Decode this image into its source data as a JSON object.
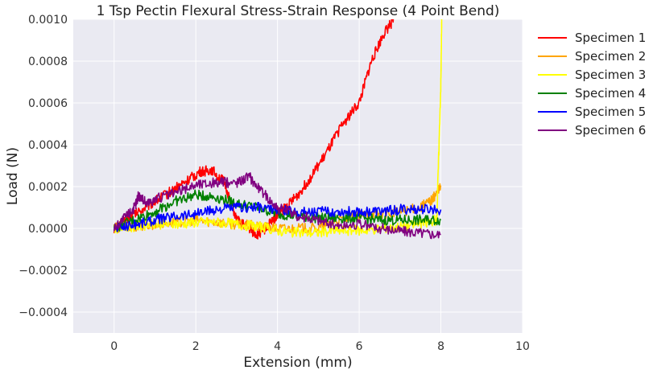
{
  "chart_data": {
    "type": "line",
    "title": "1 Tsp Pectin Flexural Stress-Strain Response (4 Point Bend)",
    "xlabel": "Extension (mm)",
    "ylabel": "Load (N)",
    "xlim": [
      -1,
      10
    ],
    "ylim": [
      -0.0005,
      0.001
    ],
    "xticks": [
      0,
      2,
      4,
      6,
      8,
      10
    ],
    "xtick_labels": [
      "0",
      "2",
      "4",
      "6",
      "8",
      "10"
    ],
    "yticks": [
      -0.0004,
      -0.0002,
      0.0,
      0.0002,
      0.0004,
      0.0006,
      0.0008,
      0.001
    ],
    "ytick_labels": [
      "−0.0004",
      "−0.0002",
      "0.0000",
      "0.0002",
      "0.0004",
      "0.0006",
      "0.0008",
      "0.0010"
    ],
    "grid": true,
    "background": "#eaeaf2",
    "legend_position": "outside-right",
    "series": [
      {
        "name": "Specimen 1",
        "color": "#ff0000",
        "x": [
          0,
          0.3,
          0.6,
          1.0,
          1.4,
          1.8,
          2.1,
          2.4,
          2.7,
          3.0,
          3.3,
          3.5,
          3.7,
          3.9,
          4.0,
          4.2,
          4.5,
          4.8,
          5.2,
          5.6,
          6.0,
          6.3,
          6.6,
          6.85
        ],
        "y": [
          0.0,
          4e-05,
          8e-05,
          0.00013,
          0.00018,
          0.00023,
          0.00027,
          0.00028,
          0.00022,
          4e-05,
          0.0,
          -3e-05,
          0.0,
          4e-05,
          7e-05,
          0.0001,
          0.00016,
          0.00024,
          0.00036,
          0.0005,
          0.0006,
          0.0008,
          0.00093,
          0.001
        ]
      },
      {
        "name": "Specimen 2",
        "color": "#ffa500",
        "x": [
          0,
          0.5,
          1.0,
          1.5,
          2.0,
          2.5,
          3.0,
          3.5,
          4.0,
          4.5,
          5.0,
          5.5,
          6.0,
          6.5,
          7.0,
          7.5,
          7.8,
          8.0
        ],
        "y": [
          0.0,
          1e-05,
          2e-05,
          3e-05,
          4e-05,
          3e-05,
          2e-05,
          1e-05,
          0.0,
          0.0,
          0.0,
          4e-05,
          6e-05,
          7e-05,
          8e-05,
          0.0001,
          0.00014,
          0.0002
        ]
      },
      {
        "name": "Specimen 3",
        "color": "#ffff00",
        "x": [
          0,
          0.5,
          1.0,
          1.5,
          2.0,
          2.5,
          3.0,
          3.5,
          4.0,
          4.5,
          5.0,
          5.5,
          6.0,
          6.5,
          7.0,
          7.5,
          7.9,
          8.0,
          8.02
        ],
        "y": [
          0.0,
          1e-05,
          2e-05,
          2e-05,
          3e-05,
          3e-05,
          2e-05,
          1e-05,
          -1e-05,
          -2e-05,
          -2e-05,
          -1e-05,
          -1e-05,
          0.0,
          1e-05,
          2e-05,
          4e-05,
          0.0007,
          0.001
        ]
      },
      {
        "name": "Specimen 4",
        "color": "#008000",
        "x": [
          0,
          0.5,
          1.0,
          1.5,
          2.0,
          2.5,
          3.0,
          3.5,
          4.0,
          4.5,
          5.0,
          5.5,
          6.0,
          6.5,
          7.0,
          7.5,
          8.0
        ],
        "y": [
          0.0,
          4e-05,
          8e-05,
          0.00013,
          0.00016,
          0.00015,
          0.00012,
          0.0001,
          7e-05,
          6e-05,
          5e-05,
          5e-05,
          5e-05,
          4e-05,
          4e-05,
          4e-05,
          4e-05
        ]
      },
      {
        "name": "Specimen 5",
        "color": "#0000ff",
        "x": [
          0,
          0.5,
          1.0,
          1.5,
          2.0,
          2.5,
          3.0,
          3.5,
          4.0,
          4.5,
          5.0,
          5.5,
          6.0,
          6.5,
          7.0,
          7.5,
          8.0
        ],
        "y": [
          0.0,
          2e-05,
          4e-05,
          6e-05,
          7e-05,
          9e-05,
          0.0001,
          0.0001,
          9e-05,
          8e-05,
          8e-05,
          8e-05,
          8e-05,
          8e-05,
          9e-05,
          9e-05,
          9e-05
        ]
      },
      {
        "name": "Specimen 6",
        "color": "#800080",
        "x": [
          0,
          0.3,
          0.5,
          0.6,
          0.8,
          1.0,
          1.5,
          2.0,
          2.5,
          3.0,
          3.3,
          3.6,
          4.0,
          4.5,
          5.0,
          5.5,
          6.0,
          6.5,
          7.0,
          7.5,
          8.0
        ],
        "y": [
          0.0,
          6e-05,
          0.0001,
          0.00016,
          0.00012,
          0.00014,
          0.00017,
          0.00021,
          0.00022,
          0.00022,
          0.00025,
          0.00018,
          0.0001,
          6e-05,
          4e-05,
          1e-05,
          2e-05,
          0.0,
          -1e-05,
          -2e-05,
          -3e-05
        ]
      }
    ]
  }
}
